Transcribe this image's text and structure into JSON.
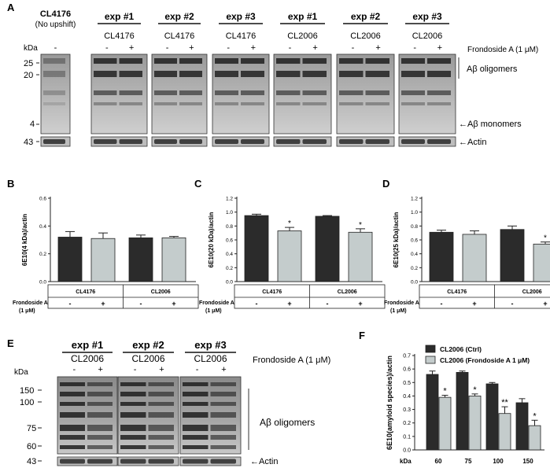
{
  "panel_letters": {
    "a": "A",
    "b": "B",
    "c": "C",
    "d": "D",
    "e": "E",
    "f": "F"
  },
  "panel_a": {
    "kda_label": "kDa",
    "markers": [
      "25",
      "20",
      "4",
      "43"
    ],
    "lanes": [
      {
        "exp": "CL4176",
        "strain": "(No upshift)",
        "signs": [
          "-"
        ]
      },
      {
        "exp": "exp #1",
        "strain": "CL4176",
        "signs": [
          "-",
          "+"
        ]
      },
      {
        "exp": "exp #2",
        "strain": "CL4176",
        "signs": [
          "-",
          "+"
        ]
      },
      {
        "exp": "exp #3",
        "strain": "CL4176",
        "signs": [
          "-",
          "+"
        ]
      },
      {
        "exp": "exp #1",
        "strain": "CL2006",
        "signs": [
          "-",
          "+"
        ]
      },
      {
        "exp": "exp #2",
        "strain": "CL2006",
        "signs": [
          "-",
          "+"
        ]
      },
      {
        "exp": "exp #3",
        "strain": "CL2006",
        "signs": [
          "-",
          "+"
        ]
      }
    ],
    "treatment": "Frondoside A (1 μM)",
    "label_oligomers": "Aβ oligomers",
    "label_monomers": "←Aβ monomers",
    "label_actin": "←Actin"
  },
  "panel_b": {
    "ylabel": "6E10(4 kDa)/actin",
    "ticks": [
      "0.0",
      "0.2",
      "0.4",
      "0.6"
    ],
    "values": [
      0.32,
      0.31,
      0.315,
      0.315
    ],
    "errors": [
      0.04,
      0.04,
      0.02,
      0.01
    ],
    "stars": [
      "",
      "",
      "",
      ""
    ]
  },
  "panel_c": {
    "ylabel": "6E10(20 kDa)/actin",
    "ticks": [
      "0.0",
      "0.2",
      "0.4",
      "0.6",
      "0.8",
      "1.0",
      "1.2"
    ],
    "values": [
      0.95,
      0.73,
      0.94,
      0.71
    ],
    "errors": [
      0.02,
      0.05,
      0.01,
      0.05
    ],
    "stars": [
      "",
      "*",
      "",
      "*"
    ]
  },
  "panel_d": {
    "ylabel": "6E10(25 kDa)/actin",
    "ticks": [
      "0.0",
      "0.2",
      "0.4",
      "0.6",
      "0.8",
      "1.0",
      "1.2"
    ],
    "values": [
      0.71,
      0.68,
      0.75,
      0.54
    ],
    "errors": [
      0.03,
      0.05,
      0.05,
      0.03
    ],
    "stars": [
      "",
      "",
      "",
      "*"
    ]
  },
  "group_table": {
    "treatment_line1": "Frondoside A",
    "treatment_line2": "(1 μM)",
    "groups": [
      "CL4176",
      "CL2006"
    ],
    "signs": [
      "-",
      "+",
      "-",
      "+"
    ]
  },
  "panel_e": {
    "kda_label": "kDa",
    "markers": [
      "150",
      "100",
      "75",
      "60",
      "43"
    ],
    "lanes": [
      {
        "exp": "exp #1",
        "strain": "CL2006",
        "signs": [
          "-",
          "+"
        ]
      },
      {
        "exp": "exp #2",
        "strain": "CL2006",
        "signs": [
          "-",
          "+"
        ]
      },
      {
        "exp": "exp #3",
        "strain": "CL2006",
        "signs": [
          "-",
          "+"
        ]
      }
    ],
    "treatment": "Frondoside A (1 μM)",
    "label_oligomers": "Aβ oligomers",
    "label_actin": "←Actin"
  },
  "chart_data": [
    {
      "type": "bar",
      "panel": "B",
      "categories": [
        "CL4176 -",
        "CL4176 +",
        "CL2006 -",
        "CL2006 +"
      ],
      "values": [
        0.32,
        0.31,
        0.315,
        0.315
      ],
      "errors": [
        0.04,
        0.04,
        0.02,
        0.01
      ],
      "ylabel": "6E10(4 kDa)/actin",
      "ylim": [
        0,
        0.6
      ]
    },
    {
      "type": "bar",
      "panel": "C",
      "categories": [
        "CL4176 -",
        "CL4176 +",
        "CL2006 -",
        "CL2006 +"
      ],
      "values": [
        0.95,
        0.73,
        0.94,
        0.71
      ],
      "errors": [
        0.02,
        0.05,
        0.01,
        0.05
      ],
      "ylabel": "6E10(20 kDa)/actin",
      "ylim": [
        0,
        1.2
      ]
    },
    {
      "type": "bar",
      "panel": "D",
      "categories": [
        "CL4176 -",
        "CL4176 +",
        "CL2006 -",
        "CL2006 +"
      ],
      "values": [
        0.71,
        0.68,
        0.75,
        0.54
      ],
      "errors": [
        0.03,
        0.05,
        0.05,
        0.03
      ],
      "ylabel": "6E10(25 kDa)/actin",
      "ylim": [
        0,
        1.2
      ]
    },
    {
      "type": "bar",
      "panel": "F",
      "categories": [
        "60",
        "75",
        "100",
        "150"
      ],
      "xlabel": "kDa",
      "ylabel": "6E10(amyloid species)/actin",
      "ticks": [
        "0.0",
        "0.1",
        "0.2",
        "0.3",
        "0.4",
        "0.5",
        "0.6",
        "0.7"
      ],
      "ylim": [
        0,
        0.7
      ],
      "series": [
        {
          "name": "CL2006 (Ctrl)",
          "color": "#2b2b2b",
          "values": [
            0.56,
            0.575,
            0.49,
            0.35
          ],
          "errors": [
            0.025,
            0.01,
            0.01,
            0.03
          ]
        },
        {
          "name": "CL2006 (Frondoside A 1 μM)",
          "color": "#c4cccc",
          "values": [
            0.39,
            0.4,
            0.27,
            0.18
          ],
          "errors": [
            0.015,
            0.015,
            0.05,
            0.04
          ]
        }
      ],
      "stars": [
        "*",
        "*",
        "**",
        "*"
      ]
    }
  ],
  "colors": {
    "dark_bar": "#2b2b2b",
    "light_bar": "#c4cccc"
  }
}
